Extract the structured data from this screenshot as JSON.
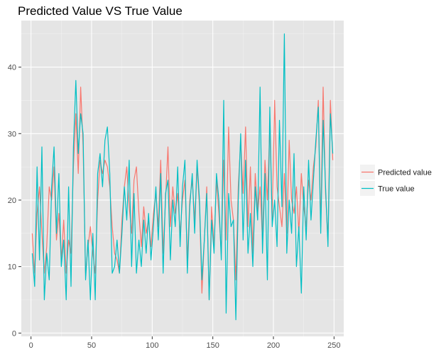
{
  "chart_data": {
    "type": "line",
    "title": "Predicted Value VS True Value",
    "xlabel": "",
    "ylabel": "",
    "xlim": [
      -8,
      258
    ],
    "ylim": [
      -0.5,
      47
    ],
    "x_ticks": [
      0,
      50,
      100,
      150,
      200,
      250
    ],
    "y_ticks": [
      0,
      10,
      20,
      30,
      40
    ],
    "grid": true,
    "legend_position": "right",
    "colors": {
      "panel_background": "#e5e5e5",
      "grid_major": "#ffffff",
      "predicted": "#f8766d",
      "true": "#00bfc4"
    },
    "series": [
      {
        "name": "Predicted value",
        "color": "#f8766d",
        "x": [
          1,
          3,
          5,
          7,
          9,
          11,
          13,
          15,
          17,
          19,
          21,
          23,
          25,
          27,
          29,
          31,
          33,
          35,
          37,
          39,
          41,
          43,
          45,
          47,
          49,
          51,
          53,
          55,
          57,
          59,
          61,
          63,
          65,
          67,
          69,
          71,
          73,
          75,
          77,
          79,
          81,
          83,
          85,
          87,
          89,
          91,
          93,
          95,
          97,
          99,
          101,
          103,
          105,
          107,
          109,
          111,
          113,
          115,
          117,
          119,
          121,
          123,
          125,
          127,
          129,
          131,
          133,
          135,
          137,
          139,
          141,
          143,
          145,
          147,
          149,
          151,
          153,
          155,
          157,
          159,
          161,
          163,
          165,
          167,
          169,
          171,
          173,
          175,
          177,
          179,
          181,
          183,
          185,
          187,
          189,
          191,
          193,
          195,
          197,
          199,
          201,
          203,
          205,
          207,
          209,
          211,
          213,
          215,
          217,
          219,
          221,
          223,
          225,
          227,
          229,
          231,
          233,
          235,
          237,
          239,
          241,
          243,
          245,
          247,
          249
        ],
        "values": [
          15,
          9,
          18,
          22,
          15,
          9,
          13,
          22,
          20,
          25,
          14,
          18,
          11,
          17,
          9,
          14,
          12,
          25,
          33,
          24,
          37,
          28,
          9,
          13,
          16,
          12,
          9,
          20,
          26,
          24,
          26,
          25,
          22,
          16,
          12,
          11,
          9,
          17,
          22,
          25,
          19,
          15,
          23,
          25,
          18,
          13,
          19,
          15,
          17,
          13,
          18,
          21,
          16,
          26,
          12,
          20,
          28,
          16,
          22,
          18,
          21,
          15,
          20,
          23,
          11,
          20,
          23,
          17,
          25,
          19,
          6,
          14,
          22,
          5,
          19,
          13,
          23,
          18,
          12,
          26,
          14,
          31,
          20,
          17,
          8,
          22,
          29,
          21,
          31,
          16,
          25,
          12,
          24,
          18,
          22,
          14,
          26,
          20,
          31,
          17,
          35,
          22,
          19,
          16,
          24,
          15,
          29,
          20,
          18,
          22,
          15,
          24,
          19,
          16,
          23,
          20,
          25,
          28,
          35,
          16,
          37,
          21,
          14,
          35,
          26
        ],
        "note": ""
      },
      {
        "name": "True value",
        "color": "#00bfc4",
        "x": [
          1,
          3,
          5,
          7,
          9,
          11,
          13,
          15,
          17,
          19,
          21,
          23,
          25,
          27,
          29,
          31,
          33,
          35,
          37,
          39,
          41,
          43,
          45,
          47,
          49,
          51,
          53,
          55,
          57,
          59,
          61,
          63,
          65,
          67,
          69,
          71,
          73,
          75,
          77,
          79,
          81,
          83,
          85,
          87,
          89,
          91,
          93,
          95,
          97,
          99,
          101,
          103,
          105,
          107,
          109,
          111,
          113,
          115,
          117,
          119,
          121,
          123,
          125,
          127,
          129,
          131,
          133,
          135,
          137,
          139,
          141,
          143,
          145,
          147,
          149,
          151,
          153,
          155,
          157,
          159,
          161,
          163,
          165,
          167,
          169,
          171,
          173,
          175,
          177,
          179,
          181,
          183,
          185,
          187,
          189,
          191,
          193,
          195,
          197,
          199,
          201,
          203,
          205,
          207,
          209,
          211,
          213,
          215,
          217,
          219,
          221,
          223,
          225,
          227,
          229,
          231,
          233,
          235,
          237,
          239,
          241,
          243,
          245,
          247,
          249
        ],
        "values": [
          12,
          7,
          25,
          11,
          28,
          5,
          12,
          8,
          22,
          28,
          15,
          24,
          10,
          14,
          5,
          22,
          7,
          28,
          38,
          27,
          33,
          30,
          8,
          14,
          5,
          15,
          5,
          24,
          27,
          22,
          29,
          31,
          24,
          9,
          10,
          14,
          9,
          15,
          22,
          17,
          26,
          10,
          21,
          9,
          14,
          10,
          17,
          12,
          18,
          11,
          16,
          22,
          14,
          24,
          9,
          21,
          23,
          11,
          20,
          16,
          25,
          13,
          22,
          26,
          9,
          19,
          24,
          15,
          26,
          20,
          8,
          14,
          21,
          5,
          17,
          12,
          24,
          20,
          11,
          35,
          3,
          21,
          16,
          17,
          2,
          20,
          30,
          14,
          26,
          12,
          18,
          10,
          22,
          17,
          37,
          12,
          24,
          8,
          34,
          16,
          20,
          13,
          32,
          19,
          45,
          12,
          20,
          15,
          27,
          10,
          16,
          6,
          22,
          14,
          26,
          17,
          23,
          29,
          34,
          15,
          32,
          22,
          13,
          33,
          27
        ],
        "note": ""
      }
    ]
  }
}
